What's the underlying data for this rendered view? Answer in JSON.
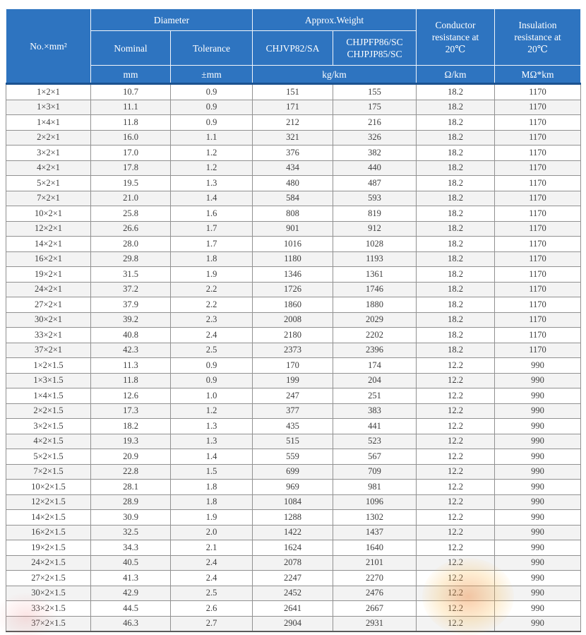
{
  "chart_data": {
    "type": "table",
    "header": {
      "col_spec": "No.×mm²",
      "group_diameter": "Diameter",
      "group_weight": "Approx.Weight",
      "sub_nominal": "Nominal",
      "sub_tolerance": "Tolerance",
      "sub_model_a": "CHJVP82/SA",
      "sub_model_b_line1": "CHJPFP86/SC",
      "sub_model_b_line2": "CHJPJP85/SC",
      "col_conductor": "Conductor resistance at 20℃",
      "col_insulation": "Insulation resistance at 20℃",
      "unit_nominal": "mm",
      "unit_tolerance": "±mm",
      "unit_weight": "kg/km",
      "unit_conductor": "Ω/km",
      "unit_insulation": "MΩ*km"
    },
    "columns": [
      "No.×mm²",
      "Nominal diameter (mm)",
      "Tolerance (±mm)",
      "CHJVP82/SA weight (kg/km)",
      "CHJPFP86/SC CHJPJP85/SC weight (kg/km)",
      "Conductor resistance at 20℃ (Ω/km)",
      "Insulation resistance at 20℃ (MΩ*km)"
    ],
    "rows": [
      [
        "1×2×1",
        "10.7",
        "0.9",
        "151",
        "155",
        "18.2",
        "1170"
      ],
      [
        "1×3×1",
        "11.1",
        "0.9",
        "171",
        "175",
        "18.2",
        "1170"
      ],
      [
        "1×4×1",
        "11.8",
        "0.9",
        "212",
        "216",
        "18.2",
        "1170"
      ],
      [
        "2×2×1",
        "16.0",
        "1.1",
        "321",
        "326",
        "18.2",
        "1170"
      ],
      [
        "3×2×1",
        "17.0",
        "1.2",
        "376",
        "382",
        "18.2",
        "1170"
      ],
      [
        "4×2×1",
        "17.8",
        "1.2",
        "434",
        "440",
        "18.2",
        "1170"
      ],
      [
        "5×2×1",
        "19.5",
        "1.3",
        "480",
        "487",
        "18.2",
        "1170"
      ],
      [
        "7×2×1",
        "21.0",
        "1.4",
        "584",
        "593",
        "18.2",
        "1170"
      ],
      [
        "10×2×1",
        "25.8",
        "1.6",
        "808",
        "819",
        "18.2",
        "1170"
      ],
      [
        "12×2×1",
        "26.6",
        "1.7",
        "901",
        "912",
        "18.2",
        "1170"
      ],
      [
        "14×2×1",
        "28.0",
        "1.7",
        "1016",
        "1028",
        "18.2",
        "1170"
      ],
      [
        "16×2×1",
        "29.8",
        "1.8",
        "1180",
        "1193",
        "18.2",
        "1170"
      ],
      [
        "19×2×1",
        "31.5",
        "1.9",
        "1346",
        "1361",
        "18.2",
        "1170"
      ],
      [
        "24×2×1",
        "37.2",
        "2.2",
        "1726",
        "1746",
        "18.2",
        "1170"
      ],
      [
        "27×2×1",
        "37.9",
        "2.2",
        "1860",
        "1880",
        "18.2",
        "1170"
      ],
      [
        "30×2×1",
        "39.2",
        "2.3",
        "2008",
        "2029",
        "18.2",
        "1170"
      ],
      [
        "33×2×1",
        "40.8",
        "2.4",
        "2180",
        "2202",
        "18.2",
        "1170"
      ],
      [
        "37×2×1",
        "42.3",
        "2.5",
        "2373",
        "2396",
        "18.2",
        "1170"
      ],
      [
        "1×2×1.5",
        "11.3",
        "0.9",
        "170",
        "174",
        "12.2",
        "990"
      ],
      [
        "1×3×1.5",
        "11.8",
        "0.9",
        "199",
        "204",
        "12.2",
        "990"
      ],
      [
        "1×4×1.5",
        "12.6",
        "1.0",
        "247",
        "251",
        "12.2",
        "990"
      ],
      [
        "2×2×1.5",
        "17.3",
        "1.2",
        "377",
        "383",
        "12.2",
        "990"
      ],
      [
        "3×2×1.5",
        "18.2",
        "1.3",
        "435",
        "441",
        "12.2",
        "990"
      ],
      [
        "4×2×1.5",
        "19.3",
        "1.3",
        "515",
        "523",
        "12.2",
        "990"
      ],
      [
        "5×2×1.5",
        "20.9",
        "1.4",
        "559",
        "567",
        "12.2",
        "990"
      ],
      [
        "7×2×1.5",
        "22.8",
        "1.5",
        "699",
        "709",
        "12.2",
        "990"
      ],
      [
        "10×2×1.5",
        "28.1",
        "1.8",
        "969",
        "981",
        "12.2",
        "990"
      ],
      [
        "12×2×1.5",
        "28.9",
        "1.8",
        "1084",
        "1096",
        "12.2",
        "990"
      ],
      [
        "14×2×1.5",
        "30.9",
        "1.9",
        "1288",
        "1302",
        "12.2",
        "990"
      ],
      [
        "16×2×1.5",
        "32.5",
        "2.0",
        "1422",
        "1437",
        "12.2",
        "990"
      ],
      [
        "19×2×1.5",
        "34.3",
        "2.1",
        "1624",
        "1640",
        "12.2",
        "990"
      ],
      [
        "24×2×1.5",
        "40.5",
        "2.4",
        "2078",
        "2101",
        "12.2",
        "990"
      ],
      [
        "27×2×1.5",
        "41.3",
        "2.4",
        "2247",
        "2270",
        "12.2",
        "990"
      ],
      [
        "30×2×1.5",
        "42.9",
        "2.5",
        "2452",
        "2476",
        "12.2",
        "990"
      ],
      [
        "33×2×1.5",
        "44.5",
        "2.6",
        "2641",
        "2667",
        "12.2",
        "990"
      ],
      [
        "37×2×1.5",
        "46.3",
        "2.7",
        "2904",
        "2931",
        "12.2",
        "990"
      ]
    ]
  },
  "colors": {
    "header_bg": "#2e74c0",
    "header_edge": "#1b5290",
    "stripe": "#f3f3f3",
    "border": "#919191",
    "text": "#3d3d3d"
  }
}
